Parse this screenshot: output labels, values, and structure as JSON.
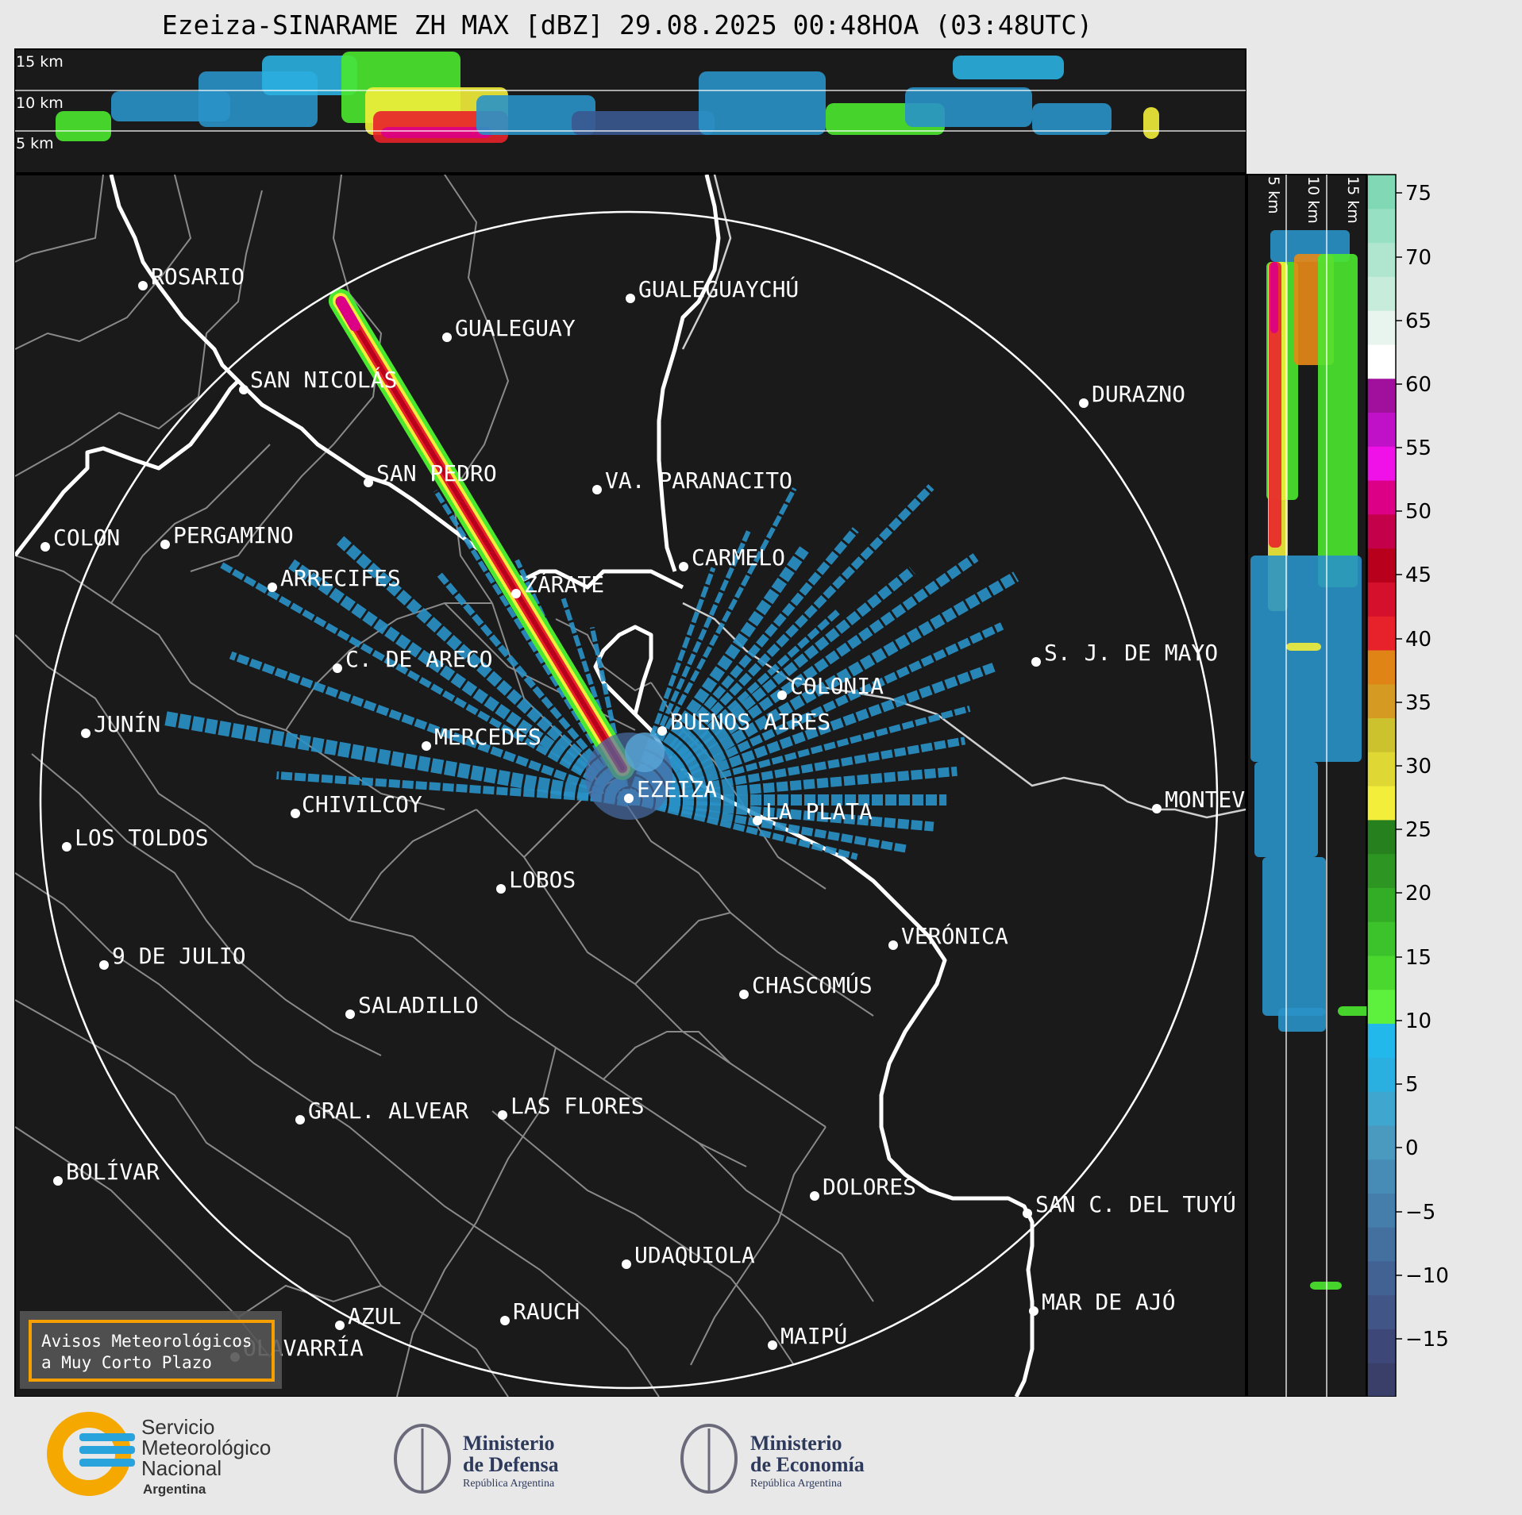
{
  "title": "Ezeiza-SINARAME ZH MAX [dBZ] 29.08.2025 00:48HOA (03:48UTC)",
  "top_panel": {
    "altitude_labels": [
      "15 km",
      "10 km",
      "5 km"
    ]
  },
  "side_panel": {
    "altitude_labels": [
      "5 km",
      "10 km",
      "15 km"
    ]
  },
  "colorbar": {
    "unit": "dBZ",
    "ticks": [
      "75",
      "70",
      "65",
      "60",
      "55",
      "50",
      "45",
      "40",
      "35",
      "30",
      "25",
      "20",
      "15",
      "10",
      "5",
      "0",
      "−5",
      "−10",
      "−15"
    ],
    "colors": [
      "#3a3f6a",
      "#3e4878",
      "#415586",
      "#426293",
      "#4470a0",
      "#467eab",
      "#478cb6",
      "#4a9ac0",
      "#3fa6cf",
      "#2ab0e0",
      "#22b8ec",
      "#5df03c",
      "#4ad82f",
      "#3cc22a",
      "#33ac26",
      "#2d9622",
      "#27801e",
      "#f2ee3a",
      "#dfd733",
      "#ccc22e",
      "#d49a22",
      "#e08416",
      "#e8222a",
      "#d4102c",
      "#b8001c",
      "#c4004a",
      "#dc0086",
      "#f010e8",
      "#c010c8",
      "#a0109c",
      "#ffffff",
      "#e8f4ee",
      "#c8ecdc",
      "#b0e6d0",
      "#98e0c4",
      "#80d8b4"
    ]
  },
  "cities": [
    {
      "name": "ROSARIO"
    },
    {
      "name": "GUALEGUAYCHÚ"
    },
    {
      "name": "GUALEGUAY"
    },
    {
      "name": "SAN NICOLÁS"
    },
    {
      "name": "DURAZNO"
    },
    {
      "name": "SAN PEDRO"
    },
    {
      "name": "VA. PARANACITO"
    },
    {
      "name": "COLON"
    },
    {
      "name": "PERGAMINO"
    },
    {
      "name": "CARMELO"
    },
    {
      "name": "ARRECIFES"
    },
    {
      "name": "ZÁRATE"
    },
    {
      "name": "S. J. DE MAYO"
    },
    {
      "name": "C. DE ARECO"
    },
    {
      "name": "COLONIA"
    },
    {
      "name": "JUNÍN"
    },
    {
      "name": "BUENOS AIRES"
    },
    {
      "name": "MERCEDES"
    },
    {
      "name": "EZEIZA"
    },
    {
      "name": "MONTEV"
    },
    {
      "name": "CHIVILCOY"
    },
    {
      "name": "LA PLATA"
    },
    {
      "name": "LOS TOLDOS"
    },
    {
      "name": "LOBOS"
    },
    {
      "name": "VERÓNICA"
    },
    {
      "name": "9 DE JULIO"
    },
    {
      "name": "CHASCOMÚS"
    },
    {
      "name": "SALADILLO"
    },
    {
      "name": "GRAL. ALVEAR"
    },
    {
      "name": "LAS FLORES"
    },
    {
      "name": "BOLÍVAR"
    },
    {
      "name": "DOLORES"
    },
    {
      "name": "SAN C. DEL TUYÚ"
    },
    {
      "name": "UDAQUIOLA"
    },
    {
      "name": "MAR DE AJÓ"
    },
    {
      "name": "AZUL"
    },
    {
      "name": "RAUCH"
    },
    {
      "name": "OLAVARRÍA"
    },
    {
      "name": "MAIPÚ"
    }
  ],
  "warning_box": {
    "line1": "Avisos Meteorológicos",
    "line2": "a Muy Corto Plazo",
    "border_color": "#f5a000"
  },
  "logos": {
    "smn": {
      "line1": "Servicio",
      "line2": "Meteorológico",
      "line3": "Nacional",
      "line4": "Argentina"
    },
    "defensa": {
      "line1": "Ministerio",
      "line2": "de Defensa",
      "line3": "República Argentina"
    },
    "economia": {
      "line1": "Ministerio",
      "line2": "de Economía",
      "line3": "República Argentina"
    }
  },
  "colors": {
    "background": "#1a1a1a",
    "page": "#e8e8e8",
    "range_ring": "#ffffff",
    "coast": "#ffffff",
    "borders": "#8a8a8a"
  }
}
